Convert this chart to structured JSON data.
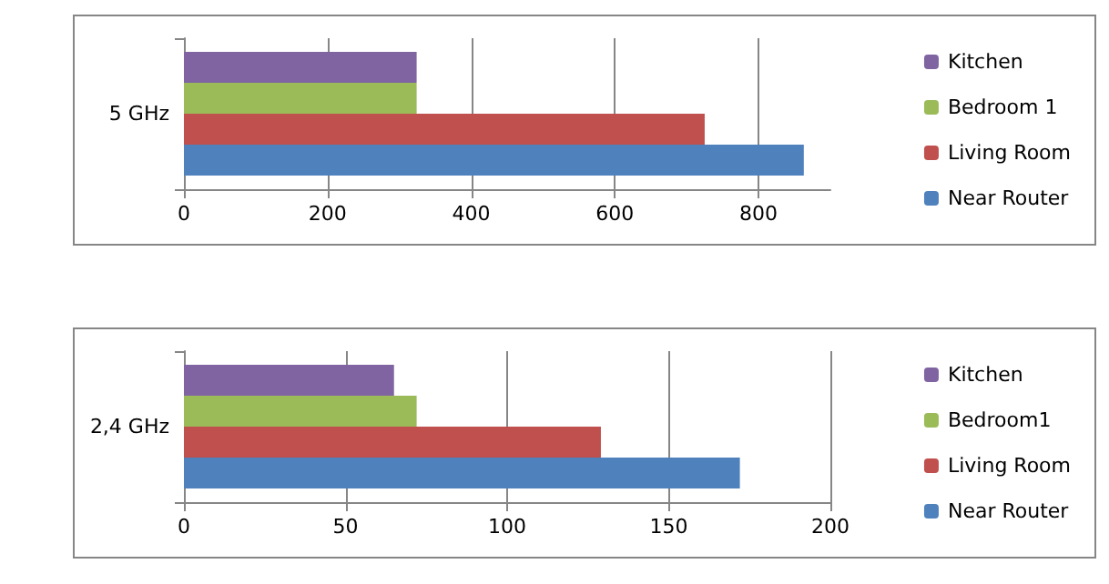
{
  "chart_data": [
    {
      "type": "bar",
      "orientation": "horizontal",
      "categories": [
        "5 GHz"
      ],
      "xlim": [
        0,
        900
      ],
      "xticks": [
        0,
        200,
        400,
        600,
        800
      ],
      "grid": "x",
      "legend": "right",
      "series": [
        {
          "name": "Kitchen",
          "color": "#8064a2",
          "values": [
            324
          ]
        },
        {
          "name": "Bedroom 1",
          "color": "#9bbb59",
          "values": [
            324
          ]
        },
        {
          "name": "Living Room",
          "color": "#c0504d",
          "values": [
            725
          ]
        },
        {
          "name": "Near Router",
          "color": "#4f81bd",
          "values": [
            863
          ]
        }
      ]
    },
    {
      "type": "bar",
      "orientation": "horizontal",
      "categories": [
        "2,4 GHz"
      ],
      "xlim": [
        0,
        200
      ],
      "xticks": [
        0,
        50,
        100,
        150,
        200
      ],
      "grid": "x",
      "legend": "right",
      "series": [
        {
          "name": "Kitchen",
          "color": "#8064a2",
          "values": [
            65
          ]
        },
        {
          "name": "Bedroom1",
          "color": "#9bbb59",
          "values": [
            72
          ]
        },
        {
          "name": "Living Room",
          "color": "#c0504d",
          "values": [
            129
          ]
        },
        {
          "name": "Near Router",
          "color": "#4f81bd",
          "values": [
            172
          ]
        }
      ]
    }
  ]
}
